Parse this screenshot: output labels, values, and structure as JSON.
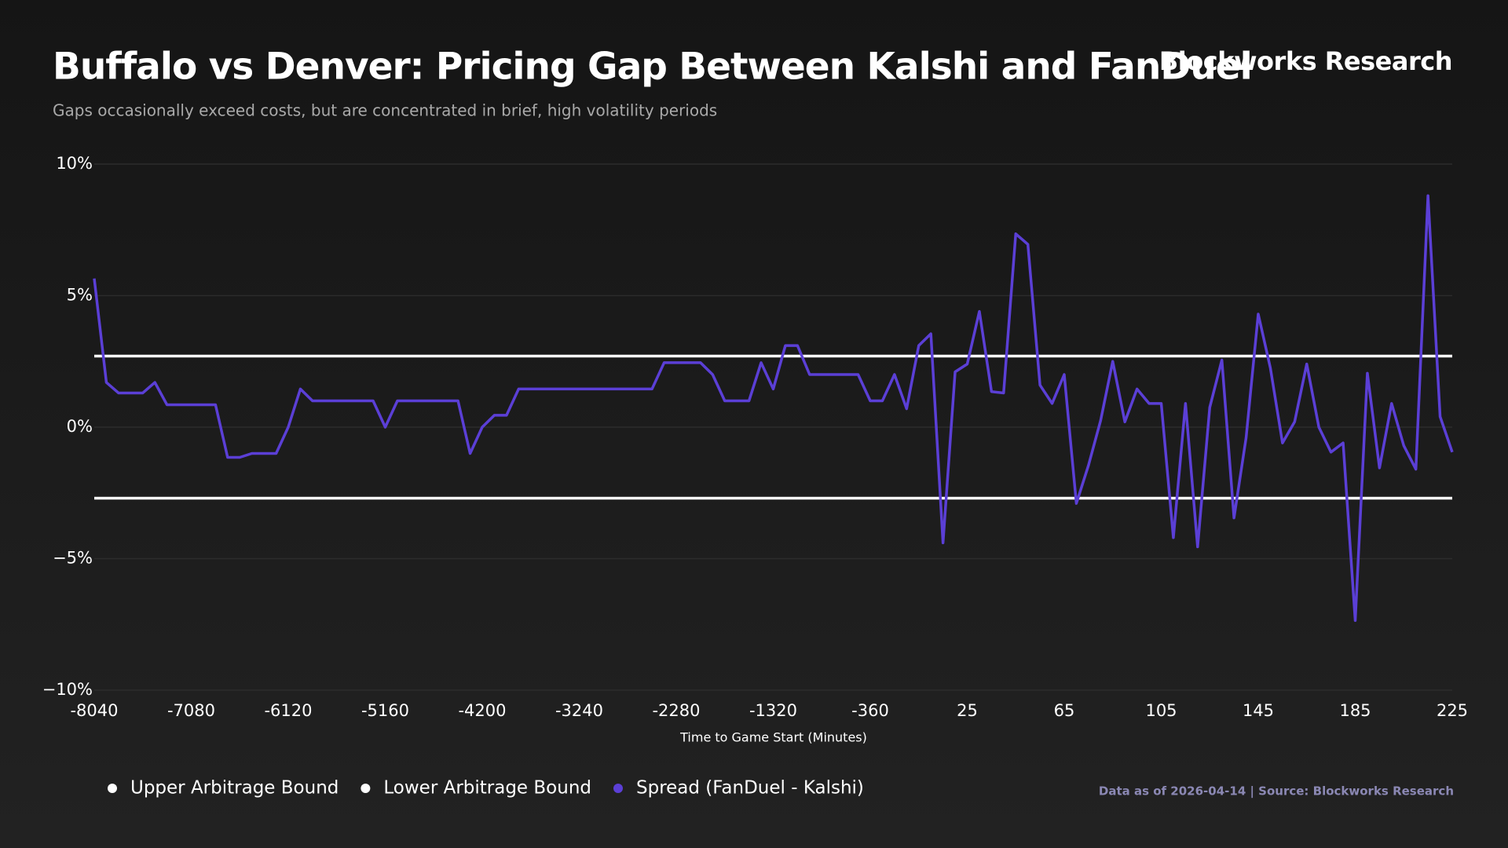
{
  "chart_data": {
    "type": "line",
    "title": "Buffalo vs Denver: Pricing Gap Between Kalshi and FanDuel",
    "subtitle": "Gaps occasionally exceed costs, but are concentrated in brief, high volatility periods",
    "brand": "Blockworks Research",
    "source": "Data as of 2026-04-14 | Source: Blockworks Research",
    "x_label": "Time to Game Start (Minutes)",
    "categories": [
      "-8040",
      null,
      null,
      null,
      null,
      null,
      null,
      null,
      "-7080",
      null,
      null,
      null,
      null,
      null,
      null,
      null,
      "-6120",
      null,
      null,
      null,
      null,
      null,
      null,
      null,
      "-5160",
      null,
      null,
      null,
      null,
      null,
      null,
      null,
      "-4200",
      null,
      null,
      null,
      null,
      null,
      null,
      null,
      "-3240",
      null,
      null,
      null,
      null,
      null,
      null,
      null,
      "-2280",
      null,
      null,
      null,
      null,
      null,
      null,
      null,
      "-1320",
      null,
      null,
      null,
      null,
      null,
      null,
      null,
      "-360",
      null,
      null,
      null,
      null,
      null,
      null,
      null,
      "25",
      null,
      null,
      null,
      null,
      null,
      null,
      null,
      "65",
      null,
      null,
      null,
      null,
      null,
      null,
      null,
      "105",
      null,
      null,
      null,
      null,
      null,
      null,
      null,
      "145",
      null,
      null,
      null,
      null,
      null,
      null,
      null,
      "185",
      null,
      null,
      null,
      null,
      null,
      null,
      null,
      "225"
    ],
    "ylim": [
      -10,
      10
    ],
    "yticks": [
      {
        "value": -10,
        "label": "−10%"
      },
      {
        "value": -5,
        "label": "−5%"
      },
      {
        "value": 0,
        "label": "0%"
      },
      {
        "value": 5,
        "label": "5%"
      },
      {
        "value": 10,
        "label": "10%"
      }
    ],
    "grid": true,
    "legend": "bottom-left",
    "series": [
      {
        "name": "Upper Arbitrage Bound",
        "color": "#ffffff",
        "values": [
          2.7,
          2.7,
          2.7,
          2.7,
          2.7,
          2.7,
          2.7,
          2.7,
          2.7,
          2.7,
          2.7,
          2.7,
          2.7,
          2.7,
          2.7,
          2.7,
          2.7,
          2.7,
          2.7,
          2.7,
          2.7,
          2.7,
          2.7,
          2.7,
          2.7,
          2.7,
          2.7,
          2.7,
          2.7,
          2.7,
          2.7,
          2.7,
          2.7,
          2.7,
          2.7,
          2.7,
          2.7,
          2.7,
          2.7,
          2.7,
          2.7,
          2.7,
          2.7,
          2.7,
          2.7,
          2.7,
          2.7,
          2.7,
          2.7,
          2.7,
          2.7,
          2.7,
          2.7,
          2.7,
          2.7,
          2.7,
          2.7,
          2.7,
          2.7,
          2.7,
          2.7,
          2.7,
          2.7,
          2.7,
          2.7,
          2.7,
          2.7,
          2.7,
          2.7,
          2.7,
          2.7,
          2.7,
          2.7,
          2.7,
          2.7,
          2.7,
          2.7,
          2.7,
          2.7,
          2.7,
          2.7,
          2.7,
          2.7,
          2.7,
          2.7,
          2.7,
          2.7,
          2.7,
          2.7,
          2.7,
          2.7,
          2.7,
          2.7,
          2.7,
          2.7,
          2.7,
          2.7,
          2.7,
          2.7,
          2.7,
          2.7,
          2.7,
          2.7,
          2.7,
          2.7,
          2.7,
          2.7,
          2.7,
          2.7,
          2.7,
          2.7,
          2.7,
          2.7
        ]
      },
      {
        "name": "Lower Arbitrage Bound",
        "color": "#ffffff",
        "values": [
          -2.7,
          -2.7,
          -2.7,
          -2.7,
          -2.7,
          -2.7,
          -2.7,
          -2.7,
          -2.7,
          -2.7,
          -2.7,
          -2.7,
          -2.7,
          -2.7,
          -2.7,
          -2.7,
          -2.7,
          -2.7,
          -2.7,
          -2.7,
          -2.7,
          -2.7,
          -2.7,
          -2.7,
          -2.7,
          -2.7,
          -2.7,
          -2.7,
          -2.7,
          -2.7,
          -2.7,
          -2.7,
          -2.7,
          -2.7,
          -2.7,
          -2.7,
          -2.7,
          -2.7,
          -2.7,
          -2.7,
          -2.7,
          -2.7,
          -2.7,
          -2.7,
          -2.7,
          -2.7,
          -2.7,
          -2.7,
          -2.7,
          -2.7,
          -2.7,
          -2.7,
          -2.7,
          -2.7,
          -2.7,
          -2.7,
          -2.7,
          -2.7,
          -2.7,
          -2.7,
          -2.7,
          -2.7,
          -2.7,
          -2.7,
          -2.7,
          -2.7,
          -2.7,
          -2.7,
          -2.7,
          -2.7,
          -2.7,
          -2.7,
          -2.7,
          -2.7,
          -2.7,
          -2.7,
          -2.7,
          -2.7,
          -2.7,
          -2.7,
          -2.7,
          -2.7,
          -2.7,
          -2.7,
          -2.7,
          -2.7,
          -2.7,
          -2.7,
          -2.7,
          -2.7,
          -2.7,
          -2.7,
          -2.7,
          -2.7,
          -2.7,
          -2.7,
          -2.7,
          -2.7,
          -2.7,
          -2.7,
          -2.7,
          -2.7,
          -2.7,
          -2.7,
          -2.7,
          -2.7,
          -2.7,
          -2.7,
          -2.7,
          -2.7,
          -2.7,
          -2.7,
          -2.7
        ]
      },
      {
        "name": "Spread (FanDuel - Kalshi)",
        "color": "#5b3fd6",
        "values": [
          5.65,
          1.7,
          1.3,
          1.3,
          1.3,
          1.7,
          0.85,
          0.85,
          0.85,
          0.85,
          0.85,
          -1.15,
          -1.15,
          -1.0,
          -1.0,
          -1.0,
          0,
          1.45,
          1.0,
          1.0,
          1.0,
          1.0,
          1.0,
          1.0,
          0,
          1.0,
          1.0,
          1.0,
          1.0,
          1.0,
          1.0,
          -1.0,
          0,
          0.45,
          0.45,
          1.45,
          1.45,
          1.45,
          1.45,
          1.45,
          1.45,
          1.45,
          1.45,
          1.45,
          1.45,
          1.45,
          1.45,
          2.45,
          2.45,
          2.45,
          2.45,
          2.0,
          1.0,
          1.0,
          1.0,
          2.45,
          1.45,
          3.1,
          3.1,
          2.0,
          2.0,
          2.0,
          2.0,
          2.0,
          1.0,
          1.0,
          2.0,
          0.7,
          3.1,
          3.55,
          -4.4,
          2.1,
          2.4,
          4.4,
          1.35,
          1.3,
          7.35,
          6.95,
          1.6,
          0.9,
          2.0,
          -2.9,
          -1.45,
          0.25,
          2.5,
          0.2,
          1.45,
          0.9,
          0.9,
          -4.2,
          0.9,
          -4.55,
          0.75,
          2.55,
          -3.45,
          -0.4,
          4.3,
          2.25,
          -0.6,
          0.2,
          2.4,
          0,
          -0.95,
          -0.6,
          -7.35,
          2.05,
          -1.55,
          0.9,
          -0.7,
          -1.6,
          8.8,
          0.4,
          -0.95
        ]
      }
    ]
  }
}
